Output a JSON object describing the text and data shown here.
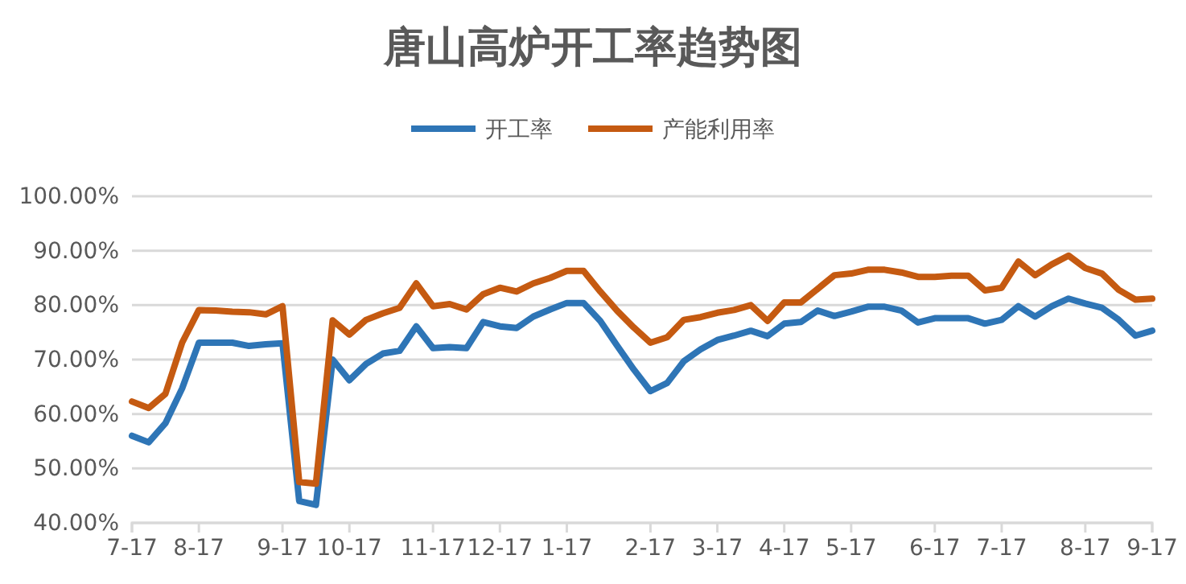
{
  "chart_data": {
    "type": "line",
    "title": "唐山高炉开工率趋势图",
    "categories": [
      "7-17",
      null,
      null,
      null,
      "8-17",
      null,
      null,
      null,
      null,
      "9-17",
      null,
      null,
      null,
      "10-17",
      null,
      null,
      null,
      null,
      "11-17",
      null,
      null,
      null,
      "12-17",
      null,
      null,
      null,
      "1-17",
      null,
      null,
      null,
      null,
      "2-17",
      null,
      null,
      null,
      "3-17",
      null,
      null,
      null,
      "4-17",
      null,
      null,
      null,
      "5-17",
      null,
      null,
      null,
      null,
      "6-17",
      null,
      null,
      null,
      "7-17",
      null,
      null,
      null,
      null,
      "8-17",
      null,
      null,
      null,
      "9-17"
    ],
    "series": [
      {
        "name": "开工率",
        "color": "#2e75b6",
        "values": [
          56.0,
          54.8,
          58.3,
          64.7,
          73.1,
          73.1,
          73.1,
          72.5,
          72.8,
          73.0,
          44.0,
          43.3,
          70.0,
          66.2,
          69.2,
          71.1,
          71.6,
          76.1,
          72.1,
          72.3,
          72.1,
          76.9,
          76.1,
          75.8,
          77.9,
          79.2,
          80.4,
          80.4,
          77.1,
          72.6,
          68.2,
          64.2,
          65.7,
          69.7,
          71.9,
          73.6,
          74.4,
          75.3,
          74.3,
          76.6,
          76.9,
          79.0,
          78.0,
          78.8,
          79.7,
          79.7,
          79.0,
          76.8,
          77.6,
          77.6,
          77.6,
          76.6,
          77.3,
          79.8,
          77.9,
          79.8,
          81.2,
          80.3,
          79.5,
          77.3,
          74.4,
          75.3
        ]
      },
      {
        "name": "产能利用率",
        "color": "#c55a11",
        "values": [
          62.3,
          61.1,
          63.7,
          73.1,
          79.1,
          79.0,
          78.8,
          78.7,
          78.3,
          79.8,
          47.5,
          47.2,
          77.2,
          74.6,
          77.3,
          78.5,
          79.5,
          84.0,
          79.8,
          80.2,
          79.2,
          82.0,
          83.2,
          82.5,
          84.0,
          85.0,
          86.3,
          86.3,
          82.5,
          79.0,
          75.9,
          73.1,
          74.1,
          77.3,
          77.8,
          78.6,
          79.1,
          80.0,
          77.1,
          80.5,
          80.5,
          83.0,
          85.5,
          85.8,
          86.5,
          86.5,
          86.0,
          85.2,
          85.2,
          85.4,
          85.4,
          82.7,
          83.2,
          88.0,
          85.5,
          87.5,
          89.1,
          86.8,
          85.8,
          82.8,
          81.0,
          81.2
        ]
      }
    ],
    "ylim": [
      40,
      100
    ],
    "yticks": [
      {
        "value": 40,
        "label": "40.00%"
      },
      {
        "value": 50,
        "label": "50.00%"
      },
      {
        "value": 60,
        "label": "60.00%"
      },
      {
        "value": 70,
        "label": "70.00%"
      },
      {
        "value": 80,
        "label": "80.00%"
      },
      {
        "value": 90,
        "label": "90.00%"
      },
      {
        "value": 100,
        "label": "100.00%"
      }
    ],
    "grid": "y",
    "legend": "top",
    "marker": "none",
    "line_style": "solid"
  }
}
